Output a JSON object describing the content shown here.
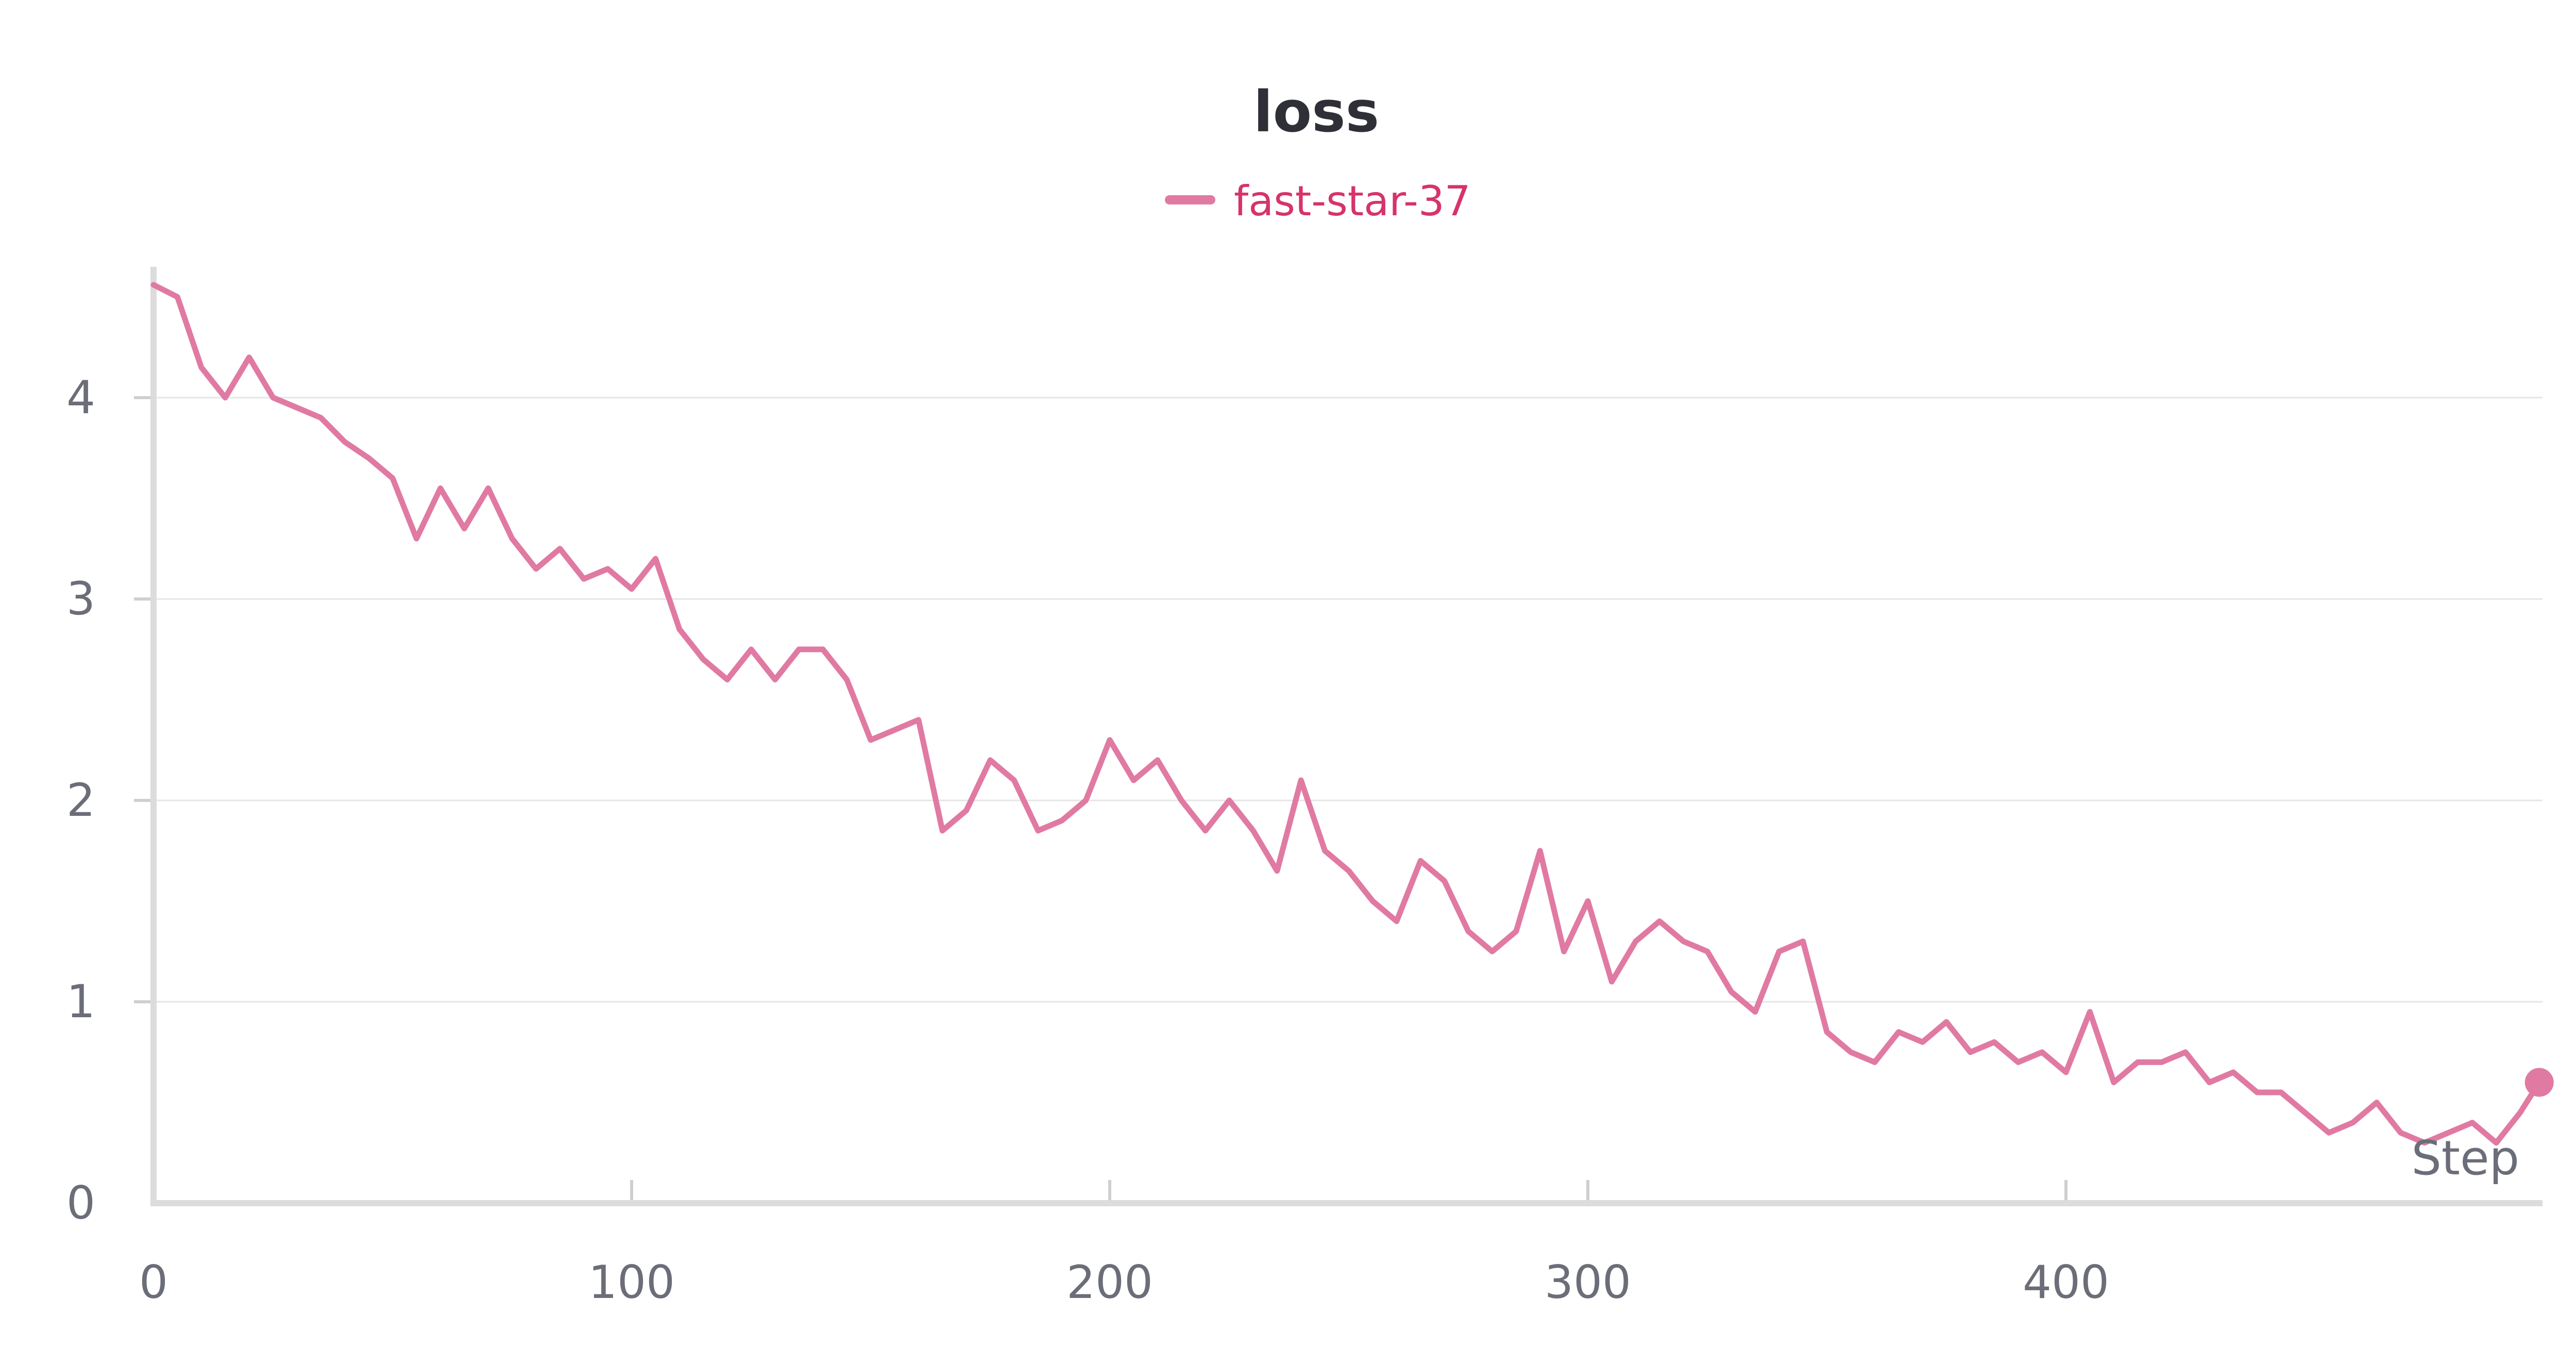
{
  "chart_data": {
    "type": "line",
    "title": "loss",
    "xlabel": "Step",
    "ylabel": "",
    "xlim": [
      0,
      500
    ],
    "ylim": [
      0,
      4.65
    ],
    "x_ticks": [
      "0",
      "100",
      "200",
      "300",
      "400"
    ],
    "y_ticks": [
      "0",
      "1",
      "2",
      "3",
      "4"
    ],
    "grid": "horizontal",
    "legend": "top-center",
    "colors": {
      "series": "#e07aa3",
      "legend_text": "#d6336c",
      "grid": "#e6e6e6",
      "axis": "#dcdcdc"
    },
    "series": [
      {
        "name": "fast-star-37",
        "smoothed": true,
        "points": [
          [
            0,
            4.56
          ],
          [
            5,
            4.5
          ],
          [
            10,
            4.15
          ],
          [
            15,
            4.0
          ],
          [
            20,
            4.2
          ],
          [
            25,
            4.0
          ],
          [
            30,
            3.95
          ],
          [
            35,
            3.9
          ],
          [
            40,
            3.78
          ],
          [
            45,
            3.7
          ],
          [
            50,
            3.6
          ],
          [
            55,
            3.3
          ],
          [
            60,
            3.55
          ],
          [
            65,
            3.35
          ],
          [
            70,
            3.55
          ],
          [
            75,
            3.3
          ],
          [
            80,
            3.15
          ],
          [
            85,
            3.25
          ],
          [
            90,
            3.1
          ],
          [
            95,
            3.15
          ],
          [
            100,
            3.05
          ],
          [
            105,
            3.2
          ],
          [
            110,
            2.85
          ],
          [
            115,
            2.7
          ],
          [
            120,
            2.6
          ],
          [
            125,
            2.75
          ],
          [
            130,
            2.6
          ],
          [
            135,
            2.75
          ],
          [
            140,
            2.75
          ],
          [
            145,
            2.6
          ],
          [
            150,
            2.3
          ],
          [
            155,
            2.35
          ],
          [
            160,
            2.4
          ],
          [
            165,
            1.85
          ],
          [
            170,
            1.95
          ],
          [
            175,
            2.2
          ],
          [
            180,
            2.1
          ],
          [
            185,
            1.85
          ],
          [
            190,
            1.9
          ],
          [
            195,
            2.0
          ],
          [
            200,
            2.3
          ],
          [
            205,
            2.1
          ],
          [
            210,
            2.2
          ],
          [
            215,
            2.0
          ],
          [
            220,
            1.85
          ],
          [
            225,
            2.0
          ],
          [
            230,
            1.85
          ],
          [
            235,
            1.65
          ],
          [
            240,
            2.1
          ],
          [
            245,
            1.75
          ],
          [
            250,
            1.65
          ],
          [
            255,
            1.5
          ],
          [
            260,
            1.4
          ],
          [
            265,
            1.7
          ],
          [
            270,
            1.6
          ],
          [
            275,
            1.35
          ],
          [
            280,
            1.25
          ],
          [
            285,
            1.35
          ],
          [
            290,
            1.75
          ],
          [
            295,
            1.25
          ],
          [
            300,
            1.5
          ],
          [
            305,
            1.1
          ],
          [
            310,
            1.3
          ],
          [
            315,
            1.4
          ],
          [
            320,
            1.3
          ],
          [
            325,
            1.25
          ],
          [
            330,
            1.05
          ],
          [
            335,
            0.95
          ],
          [
            340,
            1.25
          ],
          [
            345,
            1.3
          ],
          [
            350,
            0.85
          ],
          [
            355,
            0.75
          ],
          [
            360,
            0.7
          ],
          [
            365,
            0.85
          ],
          [
            370,
            0.8
          ],
          [
            375,
            0.9
          ],
          [
            380,
            0.75
          ],
          [
            385,
            0.8
          ],
          [
            390,
            0.7
          ],
          [
            395,
            0.75
          ],
          [
            400,
            0.65
          ],
          [
            405,
            0.95
          ],
          [
            410,
            0.6
          ],
          [
            415,
            0.7
          ],
          [
            420,
            0.7
          ],
          [
            425,
            0.75
          ],
          [
            430,
            0.6
          ],
          [
            435,
            0.65
          ],
          [
            440,
            0.55
          ],
          [
            445,
            0.55
          ],
          [
            450,
            0.45
          ],
          [
            455,
            0.35
          ],
          [
            460,
            0.4
          ],
          [
            465,
            0.5
          ],
          [
            470,
            0.35
          ],
          [
            475,
            0.3
          ],
          [
            480,
            0.35
          ],
          [
            485,
            0.4
          ],
          [
            490,
            0.3
          ],
          [
            495,
            0.45
          ],
          [
            499,
            0.6
          ]
        ]
      }
    ]
  }
}
